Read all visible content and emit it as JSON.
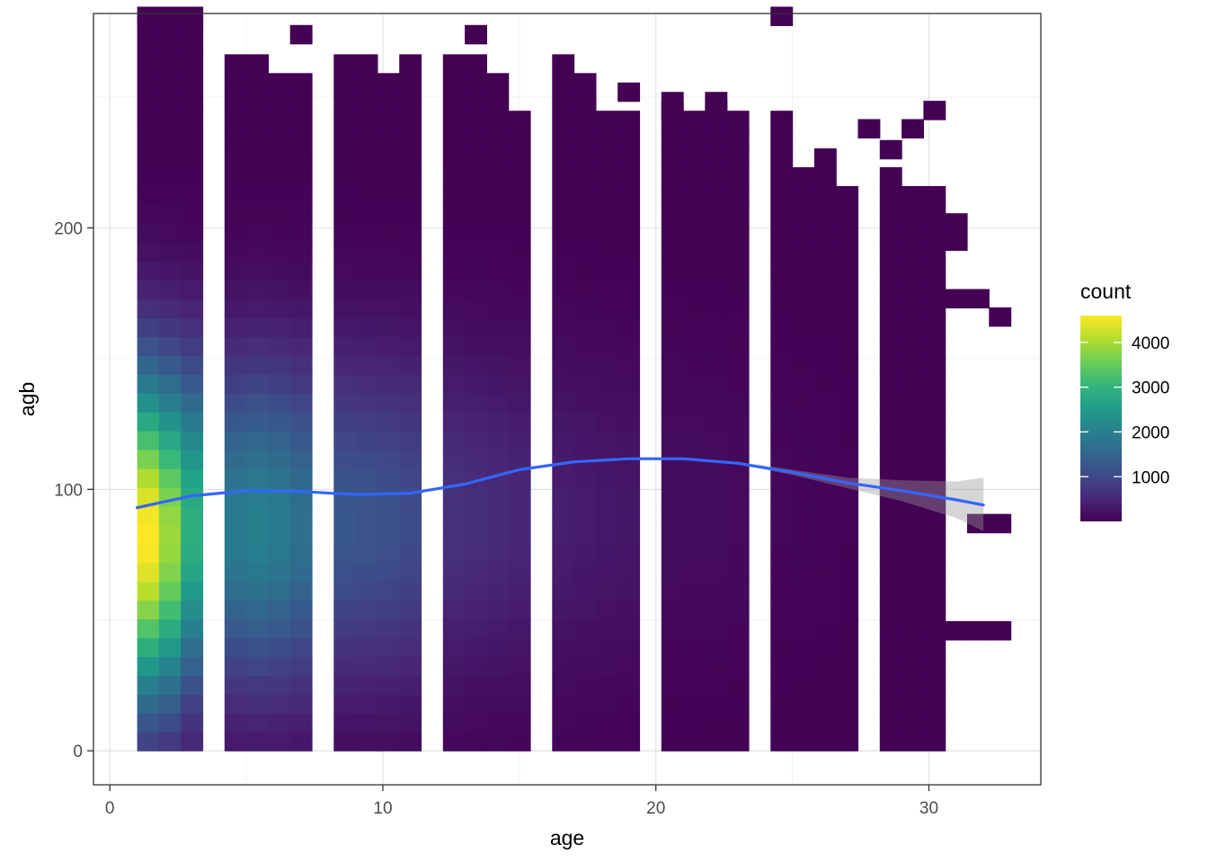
{
  "chart_data": {
    "type": "heatmap",
    "title": "",
    "xlabel": "age",
    "ylabel": "agb",
    "xlim": [
      -0.6,
      34.1
    ],
    "ylim": [
      -13,
      282
    ],
    "x_ticks": [
      {
        "value": 0,
        "label": "0"
      },
      {
        "value": 10,
        "label": "10"
      },
      {
        "value": 20,
        "label": "20"
      },
      {
        "value": 30,
        "label": "30"
      }
    ],
    "y_ticks": [
      {
        "value": 0,
        "label": "0"
      },
      {
        "value": 100,
        "label": "100"
      },
      {
        "value": 200,
        "label": "200"
      }
    ],
    "grid": true,
    "bin_width_x": 0.8,
    "bin_width_y": 7.2,
    "palette": [
      "#440154",
      "#482878",
      "#3e4a89",
      "#31688e",
      "#26828e",
      "#1f9e89",
      "#35b779",
      "#6ece58",
      "#b5de2b",
      "#fde725"
    ],
    "legend": {
      "title": "count",
      "position": "right",
      "min": 1,
      "max": 4600,
      "ticks": [
        {
          "value": 1000,
          "label": "1000"
        },
        {
          "value": 2000,
          "label": "2000"
        },
        {
          "value": 3000,
          "label": "3000"
        },
        {
          "value": 4000,
          "label": "4000"
        }
      ]
    },
    "columns": [
      {
        "x": 1.0,
        "ymax": 274,
        "peak": 4600,
        "center": 82
      },
      {
        "x": 1.8,
        "ymax": 274,
        "peak": 3900,
        "center": 82
      },
      {
        "x": 2.6,
        "ymax": 274,
        "peak": 2900,
        "center": 85
      },
      {
        "x": 4.2,
        "ymax": 266,
        "peak": 1900,
        "center": 86
      },
      {
        "x": 5.0,
        "ymax": 266,
        "peak": 2000,
        "center": 86
      },
      {
        "x": 5.8,
        "ymax": 259,
        "peak": 1900,
        "center": 86
      },
      {
        "x": 6.6,
        "ymax": 259,
        "peak": 1700,
        "center": 86
      },
      {
        "x": 8.2,
        "ymax": 266,
        "peak": 1250,
        "center": 88
      },
      {
        "x": 9.0,
        "ymax": 266,
        "peak": 1200,
        "center": 88
      },
      {
        "x": 9.8,
        "ymax": 259,
        "peak": 1150,
        "center": 88
      },
      {
        "x": 10.6,
        "ymax": 266,
        "peak": 1050,
        "center": 88
      },
      {
        "x": 12.2,
        "ymax": 266,
        "peak": 650,
        "center": 90
      },
      {
        "x": 13.0,
        "ymax": 266,
        "peak": 600,
        "center": 90
      },
      {
        "x": 13.8,
        "ymax": 259,
        "peak": 550,
        "center": 90
      },
      {
        "x": 14.6,
        "ymax": 238,
        "peak": 500,
        "center": 90
      },
      {
        "x": 16.2,
        "ymax": 266,
        "peak": 380,
        "center": 90
      },
      {
        "x": 17.0,
        "ymax": 259,
        "peak": 330,
        "center": 90
      },
      {
        "x": 17.8,
        "ymax": 238,
        "peak": 300,
        "center": 90
      },
      {
        "x": 18.6,
        "ymax": 238,
        "peak": 280,
        "center": 90
      },
      {
        "x": 20.2,
        "ymax": 245,
        "peak": 160,
        "center": 95
      },
      {
        "x": 21.0,
        "ymax": 238,
        "peak": 150,
        "center": 95
      },
      {
        "x": 21.8,
        "ymax": 245,
        "peak": 140,
        "center": 95
      },
      {
        "x": 22.6,
        "ymax": 238,
        "peak": 120,
        "center": 95
      },
      {
        "x": 24.2,
        "ymax": 238,
        "peak": 80,
        "center": 95
      },
      {
        "x": 25.0,
        "ymax": 216,
        "peak": 70,
        "center": 95
      },
      {
        "x": 25.8,
        "ymax": 224,
        "peak": 60,
        "center": 95
      },
      {
        "x": 26.6,
        "ymax": 209,
        "peak": 40,
        "center": 95
      },
      {
        "x": 28.2,
        "ymax": 216,
        "peak": 15,
        "center": 95
      },
      {
        "x": 29.0,
        "ymax": 209,
        "peak": 12,
        "center": 95
      },
      {
        "x": 29.8,
        "ymax": 209,
        "peak": 8,
        "center": 95
      }
    ],
    "extra_tiles": [
      {
        "x": 1.8,
        "y": 281
      },
      {
        "x": 2.6,
        "y": 281
      },
      {
        "x": 1.0,
        "y": 281
      },
      {
        "x": 6.6,
        "y": 274
      },
      {
        "x": 13.0,
        "y": 274
      },
      {
        "x": 24.2,
        "y": 281
      },
      {
        "x": 18.6,
        "y": 252
      },
      {
        "x": 20.2,
        "y": 245
      },
      {
        "x": 21.8,
        "y": 245
      },
      {
        "x": 27.4,
        "y": 238
      },
      {
        "x": 29.0,
        "y": 238
      },
      {
        "x": 29.8,
        "y": 245
      },
      {
        "x": 28.2,
        "y": 230
      },
      {
        "x": 30.6,
        "y": 202
      },
      {
        "x": 30.6,
        "y": 195
      },
      {
        "x": 31.4,
        "y": 173
      },
      {
        "x": 32.2,
        "y": 166
      },
      {
        "x": 30.6,
        "y": 173
      },
      {
        "x": 31.4,
        "y": 87
      },
      {
        "x": 32.2,
        "y": 87
      },
      {
        "x": 31.4,
        "y": 46
      },
      {
        "x": 32.2,
        "y": 46
      },
      {
        "x": 30.6,
        "y": 46
      }
    ],
    "smooth": {
      "color": "#3366ff",
      "x": [
        1.0,
        3.0,
        5.0,
        7.0,
        9.0,
        11.0,
        13.0,
        15.0,
        17.0,
        19.0,
        21.0,
        23.0,
        25.0,
        27.0,
        29.0,
        31.0,
        32.0
      ],
      "y": [
        93,
        97.5,
        99.5,
        99.2,
        98,
        98.5,
        102,
        107.5,
        110.5,
        111.7,
        111.7,
        110,
        106.5,
        102.5,
        99.5,
        96,
        94
      ],
      "ribbon_lower": [
        92.5,
        97,
        99,
        98.8,
        97.6,
        98.1,
        101.6,
        107.1,
        110.1,
        111.3,
        111.3,
        109.5,
        105.5,
        100.5,
        95.5,
        89,
        84
      ],
      "ribbon_upper": [
        93.5,
        98,
        100,
        99.6,
        98.4,
        98.9,
        102.4,
        107.9,
        110.9,
        112.1,
        112.1,
        110.5,
        107.5,
        104.5,
        103.5,
        103,
        104.5
      ]
    }
  }
}
